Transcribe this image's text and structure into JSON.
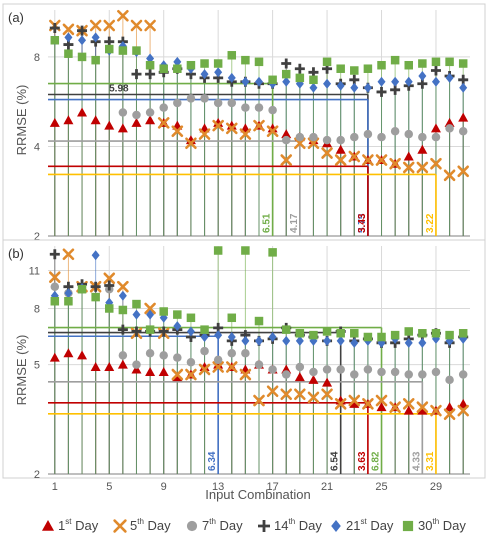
{
  "colors": {
    "day1": "#c00000",
    "day5": "#e08a2c",
    "day7": "#9e9e9e",
    "day14": "#404040",
    "day21": "#4472c4",
    "day30": "#70ad47",
    "grid": "#d9d9d9",
    "axis": "#7f7f7f",
    "ref_yellow": "#ffc000"
  },
  "chart_data": [
    {
      "type": "scatter",
      "panel_label": "(a)",
      "ylabel": "RRMSE (%)",
      "xlabel": "",
      "y_scale": "log",
      "ylim": [
        2,
        11.5
      ],
      "y_ticks": [
        2,
        4,
        8
      ],
      "xlim": [
        0.5,
        31.5
      ],
      "x_ticks": [
        1,
        5,
        9,
        13,
        17,
        21,
        25,
        29
      ],
      "grid": true,
      "series": [
        {
          "name": "1st Day",
          "key": "day1",
          "marker": "triangle",
          "values": [
            4.8,
            4.9,
            5.2,
            4.9,
            4.7,
            4.6,
            4.8,
            4.9,
            4.8,
            4.7,
            4.2,
            4.6,
            4.8,
            4.7,
            4.6,
            4.7,
            4.6,
            4.4,
            4.3,
            4.2,
            4.1,
            3.9,
            3.7,
            3.6,
            3.6,
            3.5,
            3.7,
            3.9,
            4.6,
            4.8,
            5.0
          ]
        },
        {
          "name": "5th Day",
          "key": "day5",
          "marker": "x",
          "values": [
            10.2,
            9.9,
            9.8,
            10.2,
            10.2,
            11.0,
            10.2,
            10.2,
            4.8,
            4.5,
            4.1,
            4.4,
            4.7,
            4.6,
            4.4,
            4.7,
            4.5,
            3.6,
            4.1,
            4.1,
            3.8,
            3.6,
            3.7,
            3.6,
            3.6,
            3.5,
            3.4,
            3.4,
            3.5,
            3.2,
            3.3
          ]
        },
        {
          "name": "7th Day",
          "key": "day7",
          "marker": "circle",
          "values": [
            null,
            null,
            null,
            null,
            null,
            5.2,
            5.1,
            5.2,
            5.4,
            5.6,
            5.8,
            5.8,
            5.6,
            5.6,
            5.4,
            5.4,
            5.3,
            4.2,
            4.3,
            4.3,
            4.2,
            4.2,
            4.3,
            4.4,
            4.3,
            4.5,
            4.4,
            4.3,
            4.3,
            4.6,
            4.5
          ]
        },
        {
          "name": "14th Day",
          "key": "day14",
          "marker": "plus",
          "values": [
            10.0,
            8.8,
            9.8,
            9.0,
            9.0,
            9.0,
            7.0,
            7.0,
            7.1,
            7.3,
            7.0,
            6.8,
            6.8,
            6.6,
            6.6,
            6.5,
            6.5,
            7.6,
            7.3,
            7.1,
            7.3,
            6.5,
            6.7,
            6.3,
            6.1,
            6.2,
            6.4,
            6.5,
            7.2,
            6.9,
            6.7
          ]
        },
        {
          "name": "21st Day",
          "key": "day21",
          "marker": "diamond",
          "values": [
            9.1,
            9.3,
            9.1,
            9.3,
            8.4,
            8.7,
            8.3,
            7.9,
            7.5,
            7.7,
            7.3,
            7.0,
            7.1,
            6.8,
            6.6,
            6.6,
            6.5,
            6.6,
            6.5,
            6.3,
            6.5,
            6.4,
            6.3,
            6.3,
            6.6,
            6.6,
            6.6,
            6.9,
            6.6,
            6.8,
            6.3
          ]
        },
        {
          "name": "30th Day",
          "key": "day30",
          "marker": "square",
          "values": [
            9.1,
            8.2,
            8.0,
            7.8,
            8.5,
            8.4,
            8.4,
            7.5,
            7.3,
            7.3,
            7.5,
            7.6,
            7.6,
            8.1,
            7.8,
            7.7,
            6.7,
            7.0,
            6.8,
            6.7,
            7.7,
            7.3,
            7.2,
            7.3,
            7.5,
            7.8,
            7.5,
            7.6,
            7.7,
            7.7,
            7.6
          ]
        }
      ],
      "reference_lines": [
        {
          "label": "5.98",
          "value": 5.98,
          "series_key": "day14",
          "end_x": 24
        },
        {
          "label": "5.75",
          "value": 5.75,
          "series_key": "day21",
          "end_x": 24
        },
        {
          "label": "6.51",
          "value": 6.51,
          "series_key": "day30",
          "end_x": 17
        },
        {
          "label": "4.17",
          "value": 4.17,
          "series_key": "day7",
          "end_x": 19
        },
        {
          "label": "3.43",
          "value": 3.43,
          "series_key": "day1",
          "end_x": 24
        },
        {
          "label": "3.22",
          "value": 3.22,
          "series_key": "ref_yellow",
          "end_x": 29
        }
      ]
    },
    {
      "type": "scatter",
      "panel_label": "(b)",
      "ylabel": "RRMSE (%)",
      "xlabel": "Input Combination",
      "y_scale": "log",
      "ylim": [
        2,
        13.5
      ],
      "y_ticks": [
        2,
        5,
        8,
        11
      ],
      "xlim": [
        0.5,
        31.5
      ],
      "x_ticks": [
        1,
        5,
        9,
        13,
        17,
        21,
        25,
        29
      ],
      "grid": true,
      "series": [
        {
          "name": "1st Day",
          "key": "day1",
          "marker": "triangle",
          "values": [
            5.3,
            5.5,
            5.4,
            4.9,
            4.9,
            5.0,
            4.8,
            4.7,
            4.7,
            4.5,
            4.6,
            4.9,
            5.0,
            4.9,
            4.8,
            5.0,
            4.8,
            4.8,
            4.5,
            4.4,
            4.3,
            3.7,
            3.6,
            3.6,
            3.5,
            3.5,
            3.4,
            3.4,
            3.4,
            3.5,
            3.6
          ]
        },
        {
          "name": "5th Day",
          "key": "day5",
          "marker": "x",
          "values": [
            10.4,
            12.6,
            9.6,
            9.6,
            10.3,
            9.6,
            6.5,
            8.0,
            6.5,
            4.6,
            4.6,
            4.8,
            4.9,
            4.9,
            4.6,
            3.7,
            4.0,
            3.9,
            3.9,
            3.8,
            3.9,
            3.6,
            3.7,
            3.6,
            3.7,
            3.5,
            3.6,
            3.5,
            3.4,
            3.3,
            3.4
          ]
        },
        {
          "name": "7th Day",
          "key": "day7",
          "marker": "circle",
          "values": [
            9.6,
            9.1,
            null,
            null,
            9.4,
            5.4,
            5.0,
            5.5,
            5.4,
            5.3,
            5.1,
            5.6,
            5.2,
            5.5,
            5.5,
            5.0,
            4.8,
            4.6,
            4.9,
            4.7,
            4.8,
            4.8,
            4.6,
            4.8,
            4.7,
            4.7,
            4.6,
            4.6,
            4.7,
            4.4,
            4.6
          ]
        },
        {
          "name": "14th Day",
          "key": "day14",
          "marker": "plus",
          "values": [
            12.6,
            9.6,
            9.8,
            9.6,
            9.7,
            6.7,
            6.6,
            6.6,
            6.6,
            6.7,
            6.3,
            6.4,
            6.8,
            6.1,
            6.4,
            6.1,
            6.2,
            6.8,
            6.4,
            6.3,
            6.1,
            6.6,
            6.1,
            6.2,
            6.0,
            6.0,
            6.2,
            6.4,
            6.5,
            6.0,
            6.3
          ]
        },
        {
          "name": "21st Day",
          "key": "day21",
          "marker": "diamond",
          "values": [
            8.9,
            9.1,
            9.5,
            12.5,
            8.4,
            8.9,
            7.6,
            7.6,
            7.4,
            6.9,
            6.6,
            6.3,
            6.4,
            6.3,
            6.1,
            6.1,
            6.3,
            6.1,
            6.1,
            6.1,
            6.1,
            6.1,
            6.0,
            6.1,
            6.0,
            6.2,
            6.0,
            6.0,
            6.2,
            6.1,
            6.2
          ]
        },
        {
          "name": "30th Day",
          "key": "day30",
          "marker": "square",
          "values": [
            8.5,
            8.5,
            9.4,
            8.8,
            8.0,
            7.9,
            8.3,
            6.7,
            7.8,
            7.6,
            7.4,
            6.7,
            13.0,
            7.4,
            13.0,
            7.2,
            12.8,
            6.7,
            6.5,
            6.4,
            6.6,
            6.5,
            6.5,
            6.3,
            6.3,
            6.4,
            6.6,
            6.5,
            6.5,
            6.4,
            6.5
          ]
        }
      ],
      "reference_lines": [
        {
          "label": "6.34",
          "value": 6.34,
          "series_key": "day21",
          "end_x": 13
        },
        {
          "label": "6.54",
          "value": 6.54,
          "series_key": "day14",
          "end_x": 22
        },
        {
          "label": "3.63",
          "value": 3.63,
          "series_key": "day1",
          "end_x": 24
        },
        {
          "label": "6.82",
          "value": 6.82,
          "series_key": "day30",
          "end_x": 25
        },
        {
          "label": "4.33",
          "value": 4.33,
          "series_key": "day7",
          "end_x": 28
        },
        {
          "label": "3.31",
          "value": 3.31,
          "series_key": "ref_yellow",
          "end_x": 29
        }
      ]
    }
  ],
  "legend": {
    "placement": "bottom",
    "items": [
      {
        "key": "day1",
        "marker": "triangle",
        "num": "1",
        "sup": "st",
        "word": " Day"
      },
      {
        "key": "day5",
        "marker": "x",
        "num": "5",
        "sup": "th",
        "word": " Day"
      },
      {
        "key": "day7",
        "marker": "circle",
        "num": "7",
        "sup": "th",
        "word": " Day"
      },
      {
        "key": "day14",
        "marker": "plus",
        "num": "14",
        "sup": "th",
        "word": " Day"
      },
      {
        "key": "day21",
        "marker": "diamond",
        "num": "21",
        "sup": "st",
        "word": " Day"
      },
      {
        "key": "day30",
        "marker": "square",
        "num": "30",
        "sup": "th",
        "word": " Day"
      }
    ]
  }
}
